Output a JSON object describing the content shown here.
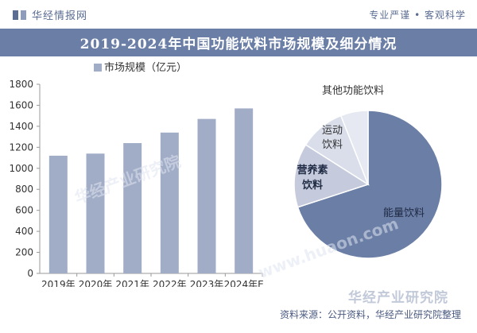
{
  "header": {
    "brand": "华经情报网",
    "brand_icon": "book-icon",
    "slogan": "专业严谨 • 客观科学"
  },
  "title": "2019-2024年中国功能饮料市场规模及细分情况",
  "footer": {
    "brand": "华经产业研究院",
    "source": "资料来源：公开资料，华经产业研究院整理"
  },
  "watermarks": [
    "华经产业研究院",
    "www.huaon.com"
  ],
  "colors": {
    "bar": "#a1adc7",
    "pie_main": "#6b7ea6",
    "pie_light": "#d9deea",
    "title_bg": "#6b7ea6"
  },
  "chart_data": [
    {
      "type": "bar",
      "legend": "市场规模（亿元）",
      "legend_position": "top",
      "categories": [
        "2019年",
        "2020年",
        "2021年",
        "2022年",
        "2023年",
        "2024年E"
      ],
      "values": [
        1120,
        1140,
        1240,
        1340,
        1470,
        1570
      ],
      "ylim": [
        0,
        1800
      ],
      "yticks": [
        0,
        200,
        400,
        600,
        800,
        1000,
        1200,
        1400,
        1600,
        1800
      ],
      "grid": false
    },
    {
      "type": "pie",
      "slices": [
        {
          "label": "能量饮料",
          "value": 70
        },
        {
          "label": "营养素饮料",
          "value": 14
        },
        {
          "label": "运动饮料",
          "value": 10
        },
        {
          "label": "其他功能饮料",
          "value": 6
        }
      ]
    }
  ]
}
